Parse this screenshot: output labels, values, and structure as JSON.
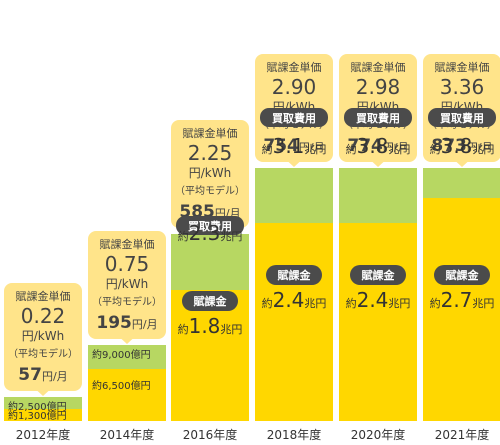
{
  "chart_data": {
    "type": "bar",
    "stacked": true,
    "categories": [
      "2012年度",
      "2014年度",
      "2016年度",
      "2018年度",
      "2020年度",
      "2021年度"
    ],
    "series": [
      {
        "name": "賦課金",
        "values_oku_yen": [
          1300,
          6500,
          18000,
          24000,
          24000,
          27000
        ],
        "labels": [
          "約1,300億円",
          "約6,500億円",
          "約1.8兆円",
          "約2.4兆円",
          "約2.4兆円",
          "約2.7兆円"
        ],
        "label_prefix": "約",
        "label_nums": [
          "1,300億円",
          "6,500億円",
          "1.8",
          "2.4",
          "2.4",
          "2.7"
        ],
        "label_units": [
          "",
          "",
          "兆円",
          "兆円",
          "兆円",
          "兆円"
        ],
        "color": "#ffd700"
      },
      {
        "name": "買取費用",
        "values_oku_yen": [
          2500,
          9000,
          23000,
          31000,
          38000,
          38000
        ],
        "labels": [
          "約2,500億円",
          "約9,000億円",
          "約2.3兆円",
          "約3.1兆円",
          "約3.8兆円",
          "約3.8兆円"
        ],
        "label_prefix": "約",
        "label_nums": [
          "2,500億円",
          "9,000億円",
          "2.3",
          "3.1",
          "3.8",
          "3.8"
        ],
        "label_units": [
          "",
          "",
          "兆円",
          "兆円",
          "兆円",
          "兆円"
        ],
        "color": "#b7d762"
      }
    ],
    "badges": {
      "surcharge": "賦課金",
      "purchase": "買取費用"
    },
    "callouts": [
      {
        "title": "賦課金単価",
        "rate": "0.22",
        "rate_unit": "円/kWh",
        "model": "（平均モデル）",
        "monthly": "57",
        "monthly_unit": "円/月"
      },
      {
        "title": "賦課金単価",
        "rate": "0.75",
        "rate_unit": "円/kWh",
        "model": "（平均モデル）",
        "monthly": "195",
        "monthly_unit": "円/月"
      },
      {
        "title": "賦課金単価",
        "rate": "2.25",
        "rate_unit": "円/kWh",
        "model": "（平均モデル）",
        "monthly": "585",
        "monthly_unit": "円/月"
      },
      {
        "title": "賦課金単価",
        "rate": "2.90",
        "rate_unit": "円/kWh",
        "model": "（平均モデル）",
        "monthly": "754",
        "monthly_unit": "円/月"
      },
      {
        "title": "賦課金単価",
        "rate": "2.98",
        "rate_unit": "円/kWh",
        "model": "（平均モデル）",
        "monthly": "774",
        "monthly_unit": "円/月"
      },
      {
        "title": "賦課金単価",
        "rate": "3.36",
        "rate_unit": "円/kWh",
        "model": "（平均モデル）",
        "monthly": "873",
        "monthly_unit": "円/月"
      }
    ],
    "colors": {
      "surcharge": "#ffd700",
      "purchase": "#b7d762",
      "callout": "#ffe48a",
      "badge": "#4b4b4b"
    }
  }
}
